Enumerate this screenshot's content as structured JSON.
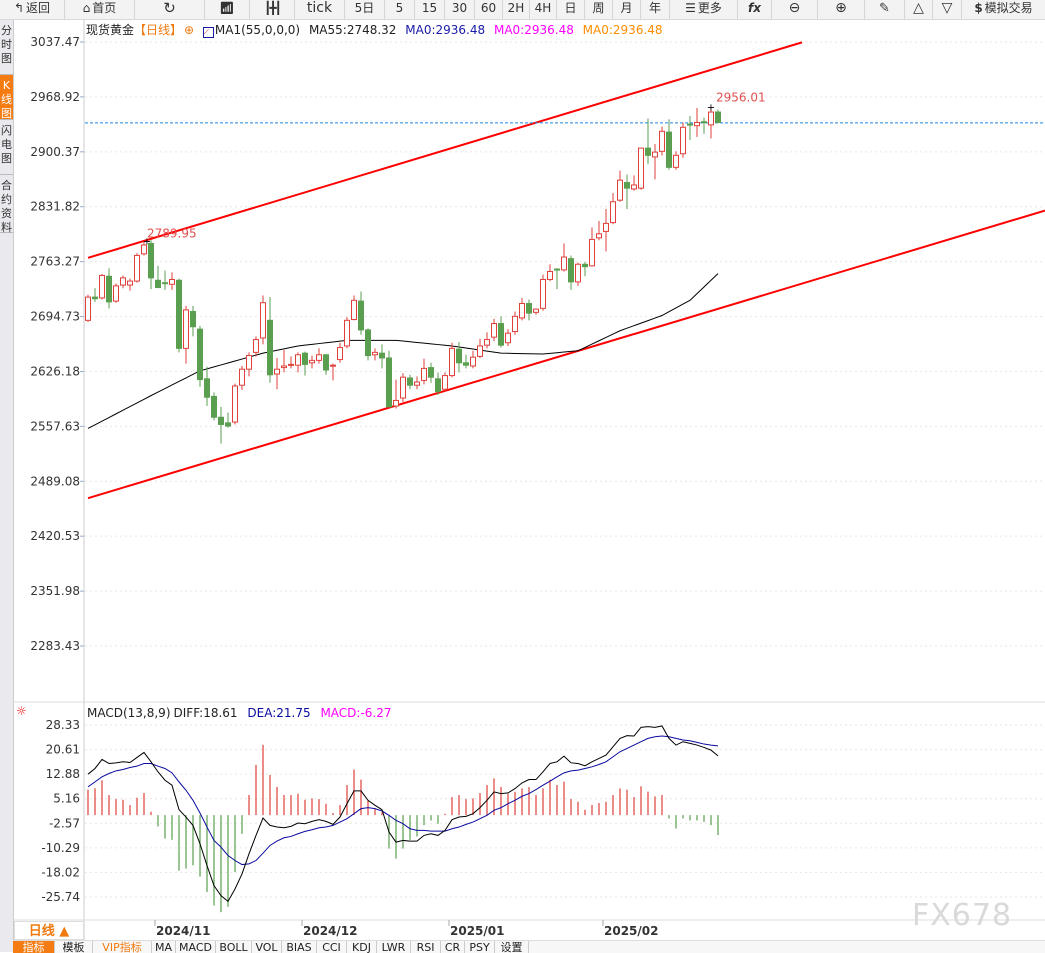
{
  "toolbar": {
    "back": "返回",
    "home": "首页",
    "refresh_icon": "refresh-icon",
    "line_chart_icon": "line-chart-icon",
    "candle_icon": "candlestick-icon",
    "tick": "tick",
    "five_day": "5日",
    "periods": [
      "5",
      "15",
      "30",
      "60",
      "2H",
      "4H",
      "日",
      "周",
      "月",
      "年"
    ],
    "more": "更多",
    "fx": "fx",
    "sim_trade": "模拟交易"
  },
  "sidebar": {
    "tabs": [
      "分时图",
      "K线图",
      "闪电图",
      "合约资料"
    ],
    "active": 1
  },
  "legend": {
    "symbol": "现货黄金",
    "period": "【日线】",
    "ma_name": "MA1(55,0,0,0)",
    "ma55": "MA55:2748.32",
    "ma0_a": "MA0:2936.48",
    "ma0_b": "MA0:2936.48",
    "ma0_c": "MA0:2936.48",
    "colors": {
      "ma0_a": "#1a1aa8",
      "ma0_b": "#ff00ff",
      "ma0_c": "#ff8c00"
    }
  },
  "main": {
    "y_ticks": [
      "3037.47",
      "2968.92",
      "2900.37",
      "2831.82",
      "2763.27",
      "2694.73",
      "2626.18",
      "2557.63",
      "2489.08",
      "2420.53",
      "2351.98",
      "2283.43"
    ],
    "high_label": "2789.95",
    "last_high_label": "2956.01",
    "current_price": 2936.48
  },
  "chart_data": [
    {
      "type": "candlestick",
      "ohlc": [
        [
          2690,
          2722,
          2688,
          2719
        ],
        [
          2719,
          2730,
          2713,
          2717
        ],
        [
          2718,
          2748,
          2716,
          2746
        ],
        [
          2745,
          2755,
          2705,
          2713
        ],
        [
          2714,
          2736,
          2712,
          2733
        ],
        [
          2734,
          2746,
          2730,
          2743
        ],
        [
          2734,
          2742,
          2727,
          2739
        ],
        [
          2739,
          2774,
          2737,
          2771
        ],
        [
          2773,
          2789,
          2771,
          2784
        ],
        [
          2786,
          2789.95,
          2729,
          2743
        ],
        [
          2740,
          2758,
          2730,
          2731
        ],
        [
          2737,
          2752,
          2728,
          2736
        ],
        [
          2735,
          2750,
          2728,
          2741
        ],
        [
          2740,
          2742,
          2650,
          2655
        ],
        [
          2655,
          2708,
          2636,
          2703
        ],
        [
          2701,
          2708,
          2670,
          2682
        ],
        [
          2679,
          2683,
          2607,
          2616
        ],
        [
          2617,
          2632,
          2583,
          2594
        ],
        [
          2595,
          2600,
          2565,
          2569
        ],
        [
          2569,
          2582,
          2536,
          2560
        ],
        [
          2562,
          2575,
          2556,
          2558
        ],
        [
          2563,
          2611,
          2560,
          2608
        ],
        [
          2609,
          2633,
          2603,
          2629
        ],
        [
          2629,
          2650,
          2620,
          2646
        ],
        [
          2650,
          2670,
          2645,
          2666
        ],
        [
          2668,
          2721,
          2660,
          2712
        ],
        [
          2690,
          2719,
          2612,
          2622
        ],
        [
          2623,
          2643,
          2604,
          2629
        ],
        [
          2631,
          2653,
          2625,
          2633
        ],
        [
          2634,
          2645,
          2630,
          2635
        ],
        [
          2634,
          2650,
          2625,
          2647
        ],
        [
          2649,
          2651,
          2621,
          2635
        ],
        [
          2637,
          2646,
          2630,
          2640
        ],
        [
          2640,
          2655,
          2636,
          2647
        ],
        [
          2647,
          2648,
          2622,
          2628
        ],
        [
          2633,
          2636,
          2615,
          2634
        ],
        [
          2641,
          2662,
          2637,
          2656
        ],
        [
          2658,
          2694,
          2655,
          2690
        ],
        [
          2691,
          2721,
          2690,
          2715
        ],
        [
          2714,
          2726,
          2672,
          2678
        ],
        [
          2678,
          2680,
          2640,
          2646
        ],
        [
          2647,
          2655,
          2640,
          2650
        ],
        [
          2649,
          2660,
          2630,
          2643
        ],
        [
          2643,
          2652,
          2582,
          2582
        ],
        [
          2583,
          2616,
          2580,
          2590
        ],
        [
          2593,
          2624,
          2588,
          2619
        ],
        [
          2618,
          2622,
          2604,
          2609
        ],
        [
          2609,
          2620,
          2604,
          2613
        ],
        [
          2615,
          2642,
          2610,
          2630
        ],
        [
          2631,
          2637,
          2612,
          2619
        ],
        [
          2617,
          2625,
          2597,
          2601
        ],
        [
          2604,
          2625,
          2601,
          2621
        ],
        [
          2621,
          2662,
          2619,
          2655
        ],
        [
          2654,
          2663,
          2625,
          2637
        ],
        [
          2637,
          2647,
          2630,
          2634
        ],
        [
          2633,
          2652,
          2630,
          2644
        ],
        [
          2645,
          2667,
          2643,
          2658
        ],
        [
          2659,
          2675,
          2655,
          2666
        ],
        [
          2669,
          2692,
          2664,
          2686
        ],
        [
          2686,
          2695,
          2656,
          2659
        ],
        [
          2662,
          2679,
          2658,
          2674
        ],
        [
          2676,
          2701,
          2672,
          2695
        ],
        [
          2693,
          2718,
          2690,
          2711
        ],
        [
          2711,
          2716,
          2690,
          2699
        ],
        [
          2700,
          2705,
          2697,
          2704
        ],
        [
          2705,
          2747,
          2702,
          2741
        ],
        [
          2741,
          2760,
          2739,
          2751
        ],
        [
          2754,
          2755,
          2729,
          2753
        ],
        [
          2753,
          2786,
          2751,
          2769
        ],
        [
          2767,
          2771,
          2728,
          2738
        ],
        [
          2738,
          2762,
          2733,
          2760
        ],
        [
          2760,
          2763,
          2745,
          2757
        ],
        [
          2758,
          2806,
          2757,
          2791
        ],
        [
          2793,
          2814,
          2790,
          2798
        ],
        [
          2801,
          2829,
          2776,
          2811
        ],
        [
          2812,
          2849,
          2810,
          2838
        ],
        [
          2840,
          2877,
          2838,
          2865
        ],
        [
          2862,
          2872,
          2829,
          2855
        ],
        [
          2854,
          2871,
          2852,
          2859
        ],
        [
          2855,
          2905,
          2853,
          2905
        ],
        [
          2905,
          2942,
          2885,
          2896
        ],
        [
          2894,
          2910,
          2866,
          2900
        ],
        [
          2901,
          2932,
          2896,
          2926
        ],
        [
          2925,
          2941,
          2878,
          2881
        ],
        [
          2881,
          2901,
          2878,
          2896
        ],
        [
          2898,
          2937,
          2893,
          2931
        ],
        [
          2935,
          2945,
          2915,
          2934
        ],
        [
          2933,
          2955,
          2919,
          2937
        ],
        [
          2938,
          2943,
          2923,
          2937
        ],
        [
          2934,
          2956.01,
          2917,
          2950
        ],
        [
          2950,
          2953,
          2936,
          2937
        ]
      ],
      "ma55": [
        [
          0,
          2555
        ],
        [
          9,
          2596
        ],
        [
          16,
          2627
        ],
        [
          25,
          2649
        ],
        [
          30,
          2658
        ],
        [
          37,
          2665
        ],
        [
          44,
          2665
        ],
        [
          52,
          2658
        ],
        [
          59,
          2649
        ],
        [
          65,
          2648
        ],
        [
          70,
          2652
        ],
        [
          76,
          2677
        ],
        [
          82,
          2696
        ],
        [
          86,
          2715
        ],
        [
          90,
          2748.32
        ]
      ],
      "trendlines": [
        {
          "color": "#ff0000",
          "from": [
            0,
            2768
          ],
          "to": [
            102,
            3037
          ]
        },
        {
          "color": "#ff0000",
          "from": [
            0,
            2468
          ],
          "to": [
            136.7,
            2827
          ]
        }
      ],
      "ylim": [
        2283.43,
        3037.47
      ],
      "x_labels": [
        {
          "label": "2024/11",
          "index": 10
        },
        {
          "label": "2024/12",
          "index": 31
        },
        {
          "label": "2025/01",
          "index": 52
        },
        {
          "label": "2025/02",
          "index": 74
        }
      ],
      "colors": {
        "up": "#e0403a",
        "down": "#5a9e50",
        "ma55": "#000000",
        "price_line": "#1e88e5"
      }
    },
    {
      "type": "macd",
      "params": "MACD(13,8,9)",
      "diff_label": "DIFF:18.61",
      "dea_label": "DEA:21.75",
      "macd_label": "MACD:-6.27",
      "y_ticks": [
        "28.33",
        "20.61",
        "12.88",
        "5.16",
        "-2.57",
        "-10.29",
        "-18.02",
        "-25.74"
      ],
      "ylim": [
        -25.74,
        28.33
      ],
      "diff": [
        12.87,
        14.66,
        17.5,
        16.23,
        16.44,
        16.76,
        16.55,
        18.13,
        19.71,
        16.76,
        13.6,
        10.97,
        9.4,
        1.72,
        -0.6,
        -3.23,
        -9.01,
        -15.85,
        -22.16,
        -25.32,
        -27.11,
        -23.22,
        -18.48,
        -12.17,
        -6.38,
        -0.91,
        -3.23,
        -3.75,
        -3.96,
        -3.54,
        -2.49,
        -2.7,
        -1.97,
        -1.44,
        -1.97,
        -2.91,
        -0.6,
        3.61,
        7.61,
        7.61,
        4.66,
        3.08,
        1.72,
        -5.33,
        -8.49,
        -7.96,
        -8.17,
        -8.17,
        -6.38,
        -5.86,
        -6.38,
        -4.81,
        -1.44,
        -0.6,
        -0.39,
        0.45,
        2.35,
        4.66,
        7.29,
        6.77,
        6.98,
        8.34,
        10.13,
        11.18,
        11.18,
        13.6,
        16.23,
        16.76,
        18.55,
        16.44,
        16.23,
        15.5,
        16.76,
        17.81,
        18.86,
        21.49,
        24.12,
        24.97,
        24.86,
        27.6,
        27.81,
        27.6,
        28.02,
        24.12,
        22.02,
        23.07,
        22.55,
        22.02,
        21.28,
        20.44,
        18.61
      ],
      "dea": [
        8.87,
        10.45,
        12.03,
        13.08,
        13.92,
        14.34,
        14.97,
        15.39,
        16.23,
        16.23,
        15.39,
        14.66,
        13.29,
        10.45,
        7.82,
        4.66,
        0.66,
        -3.75,
        -7.96,
        -10.07,
        -12.7,
        -14.27,
        -15.54,
        -15.33,
        -14.27,
        -11.96,
        -9.54,
        -8.17,
        -7.12,
        -6.7,
        -5.86,
        -5.12,
        -4.6,
        -3.96,
        -3.75,
        -3.23,
        -2.18,
        -1.12,
        0.45,
        2.03,
        2.35,
        2.03,
        1.29,
        -0.07,
        -1.65,
        -2.7,
        -4.28,
        -4.81,
        -4.81,
        -5.02,
        -5.02,
        -5.02,
        -4.28,
        -3.75,
        -2.91,
        -2.18,
        -1.12,
        -0.07,
        1.51,
        2.35,
        3.61,
        4.66,
        5.93,
        6.77,
        8.03,
        9.4,
        10.66,
        12.03,
        13.29,
        13.92,
        14.13,
        14.66,
        15.18,
        15.92,
        16.76,
        18.34,
        19.92,
        20.97,
        22.02,
        23.07,
        24.12,
        24.65,
        24.86,
        24.65,
        24.12,
        23.6,
        23.39,
        22.86,
        22.34,
        22.02,
        21.75
      ],
      "colors": {
        "diff": "#000000",
        "dea": "#0a0aa0",
        "pos": "#e0403a",
        "neg": "#5a9e50",
        "macd_label": "#ff00ff"
      }
    }
  ],
  "footer": {
    "period_button": "日线 ▲",
    "tabs": [
      "指标",
      "模板",
      "VIP指标",
      "MA",
      "MACD",
      "BOLL",
      "VOL",
      "BIAS",
      "CCI",
      "KDJ",
      "LWR",
      "RSI",
      "CR",
      "PSY",
      "设置"
    ],
    "active_tab": 0,
    "watermark": "FX678"
  }
}
